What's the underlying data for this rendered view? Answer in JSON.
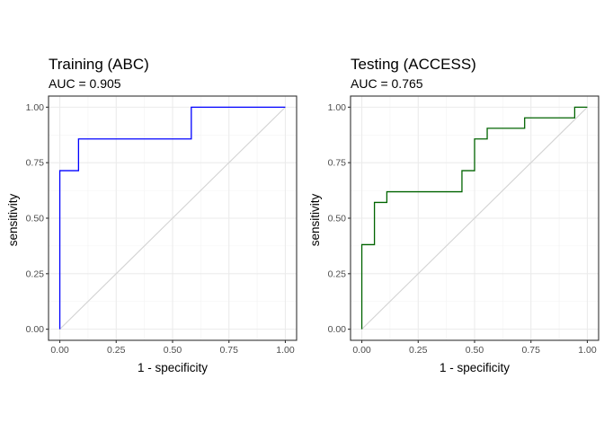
{
  "chart_data": [
    {
      "type": "line",
      "title": "Training (ABC)",
      "subtitle": "AUC = 0.905",
      "xlabel": "1 - specificity",
      "ylabel": "sensitivity",
      "xlim": [
        0,
        1
      ],
      "ylim": [
        0,
        1
      ],
      "xticks": [
        "0.00",
        "0.25",
        "0.50",
        "0.75",
        "1.00"
      ],
      "yticks": [
        "0.00",
        "0.25",
        "0.50",
        "0.75",
        "1.00"
      ],
      "grid": true,
      "reference_line": {
        "from": [
          0,
          0
        ],
        "to": [
          1,
          1
        ],
        "color": "#d3d3d3"
      },
      "series": [
        {
          "color": "#0000ff",
          "x": [
            0,
            0,
            0.083,
            0.083,
            0.583,
            0.583,
            1.0
          ],
          "y": [
            0,
            0.714,
            0.714,
            0.857,
            0.857,
            1.0,
            1.0
          ]
        }
      ]
    },
    {
      "type": "line",
      "title": "Testing (ACCESS)",
      "subtitle": "AUC = 0.765",
      "xlabel": "1 - specificity",
      "ylabel": "sensitivity",
      "xlim": [
        0,
        1
      ],
      "ylim": [
        0,
        1
      ],
      "xticks": [
        "0.00",
        "0.25",
        "0.50",
        "0.75",
        "1.00"
      ],
      "yticks": [
        "0.00",
        "0.25",
        "0.50",
        "0.75",
        "1.00"
      ],
      "grid": true,
      "reference_line": {
        "from": [
          0,
          0
        ],
        "to": [
          1,
          1
        ],
        "color": "#d3d3d3"
      },
      "series": [
        {
          "color": "#006400",
          "x": [
            0,
            0,
            0.056,
            0.056,
            0.111,
            0.111,
            0.444,
            0.444,
            0.5,
            0.5,
            0.556,
            0.556,
            0.722,
            0.722,
            0.944,
            0.944,
            1.0
          ],
          "y": [
            0,
            0.381,
            0.381,
            0.571,
            0.571,
            0.619,
            0.619,
            0.714,
            0.714,
            0.857,
            0.857,
            0.905,
            0.905,
            0.952,
            0.952,
            1.0,
            1.0
          ]
        }
      ]
    }
  ]
}
